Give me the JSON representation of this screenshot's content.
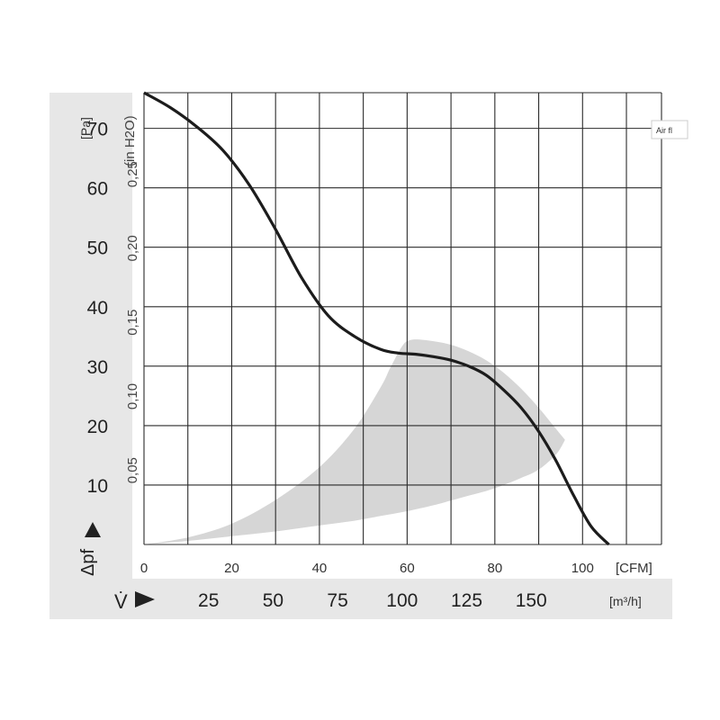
{
  "tooltip": "Air fl",
  "chart_data": {
    "type": "line",
    "y_pa_ticks": [
      70,
      60,
      50,
      40,
      30,
      20,
      10
    ],
    "y_pa_unit": "[Pa]",
    "y_inh2o_ticks": [
      "0,25",
      "0,20",
      "0,15",
      "0,10",
      "0,05"
    ],
    "y_inh2o_values": [
      0.25,
      0.2,
      0.15,
      0.1,
      0.05
    ],
    "y_inh2o_unit": "(in H2O)",
    "y_axis_symbol": "Δpf",
    "x_cfm_ticks": [
      0,
      20,
      40,
      60,
      80,
      100
    ],
    "x_cfm_unit": "[CFM]",
    "x_m3h_ticks": [
      25,
      50,
      75,
      100,
      125,
      150
    ],
    "x_m3h_unit": "[m³/h]",
    "x_axis_symbol": "V̇",
    "xlim_cfm": [
      0,
      118
    ],
    "ylim_pa": [
      0,
      76
    ],
    "grid": true,
    "series": [
      {
        "x": [
          0,
          6,
          12,
          18,
          24,
          30,
          36,
          42,
          48,
          54,
          58,
          62,
          66,
          70,
          74,
          78,
          82,
          86,
          90,
          94,
          98,
          102,
          106
        ],
        "y": [
          76,
          73.5,
          70.3,
          66.3,
          60.5,
          53,
          44.8,
          38.5,
          35,
          32.8,
          32.2,
          32,
          31.6,
          31,
          30,
          28.5,
          26,
          23,
          19,
          14,
          8.2,
          3,
          0
        ]
      }
    ],
    "operating_range_upper": {
      "x": [
        0,
        10,
        20,
        30,
        40,
        48,
        54,
        56,
        58,
        59,
        60,
        62,
        66,
        70,
        74,
        78,
        82,
        86,
        90,
        94,
        96
      ],
      "y": [
        0,
        1.2,
        3.5,
        7.5,
        13,
        19.5,
        26.5,
        29.5,
        32.3,
        33.5,
        34.2,
        34.5,
        34.2,
        33.6,
        32.5,
        31,
        28.9,
        26.2,
        23,
        19.4,
        17.6
      ]
    },
    "operating_range_lower": {
      "x": [
        96,
        94,
        90,
        86,
        82,
        78,
        74,
        70,
        66,
        60,
        54,
        48,
        40,
        30,
        20,
        10,
        0
      ],
      "y": [
        17.6,
        15.2,
        12.6,
        11.2,
        10,
        9,
        8.2,
        7.4,
        6.6,
        5.6,
        4.8,
        4,
        3.2,
        2.2,
        1.4,
        0.6,
        0
      ]
    }
  }
}
